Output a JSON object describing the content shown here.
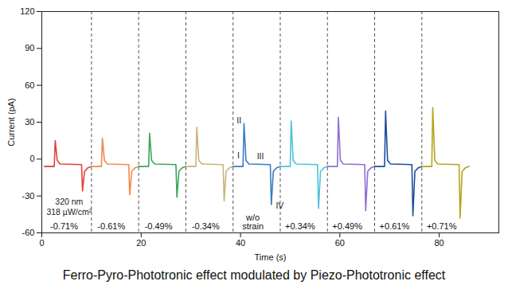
{
  "chart_data": {
    "type": "line",
    "title": "Ferro-Pyro-Phototronic effect modulated by Piezo-Phototronic effect",
    "x_label": "Time (s)",
    "y_label": "Current (pA)",
    "xlim": [
      0,
      92
    ],
    "xticks": [
      0,
      20,
      40,
      60,
      80
    ],
    "ylim": [
      -60,
      120
    ],
    "yticks": [
      -60,
      -30,
      0,
      30,
      60,
      90,
      120
    ],
    "dividers": [
      10,
      19.5,
      29,
      38.5,
      48,
      57.5,
      67,
      76.5
    ],
    "series": [
      {
        "name": "-0.71%",
        "color": "#e0403a",
        "x": [
          0.5,
          2.5,
          2.7,
          3.1,
          3.7,
          8,
          8.2,
          8.6,
          9.3,
          10
        ],
        "values": [
          -6,
          -6,
          15,
          -1,
          -4,
          -4.5,
          -26,
          -10,
          -7,
          -6
        ]
      },
      {
        "name": "-0.61%",
        "color": "#f08a4b",
        "x": [
          10,
          12,
          12.2,
          12.6,
          13.2,
          17.5,
          17.7,
          18.1,
          18.8,
          19.5
        ],
        "values": [
          -6,
          -6,
          17,
          -1,
          -4,
          -4.5,
          -29,
          -10,
          -7,
          -6
        ]
      },
      {
        "name": "-0.49%",
        "color": "#3aa655",
        "x": [
          19.5,
          21.5,
          21.7,
          22.1,
          22.7,
          27,
          27.2,
          27.6,
          28.3,
          29
        ],
        "values": [
          -6,
          -6,
          21,
          -1,
          -4,
          -4.5,
          -31,
          -10,
          -7,
          -6
        ]
      },
      {
        "name": "-0.34%",
        "color": "#c9b37a",
        "x": [
          29,
          31,
          31.2,
          31.6,
          32.2,
          36.5,
          36.7,
          37.1,
          37.8,
          38.5
        ],
        "values": [
          -6,
          -6,
          26,
          -1,
          -4,
          -4.5,
          -34,
          -10,
          -7,
          -6
        ]
      },
      {
        "name": "w/o strain",
        "color": "#3a7cc2",
        "x": [
          38.5,
          40.5,
          40.7,
          41.1,
          41.7,
          46,
          46.2,
          46.6,
          47.3,
          48
        ],
        "values": [
          -6,
          -6,
          29,
          -1,
          -4,
          -4.5,
          -37,
          -10,
          -7,
          -6
        ]
      },
      {
        "name": "+0.34%",
        "color": "#4cc3d9",
        "x": [
          48,
          50,
          50.2,
          50.6,
          51.2,
          55.5,
          55.7,
          56.1,
          56.8,
          57.5
        ],
        "values": [
          -6,
          -6,
          31,
          -1,
          -4,
          -4.5,
          -40,
          -10,
          -7,
          -6
        ]
      },
      {
        "name": "+0.49%",
        "color": "#8f6fd1",
        "x": [
          57.5,
          59.5,
          59.7,
          60.1,
          60.7,
          65,
          65.2,
          65.6,
          66.3,
          67
        ],
        "values": [
          -6,
          -6,
          34,
          -1,
          -4,
          -4.5,
          -42,
          -10,
          -7,
          -6
        ]
      },
      {
        "name": "+0.61%",
        "color": "#1f4e9c",
        "x": [
          67,
          69,
          69.2,
          69.6,
          70.2,
          74.5,
          74.7,
          75.1,
          75.8,
          76.5
        ],
        "values": [
          -6,
          -6,
          39,
          -1,
          -4,
          -4.5,
          -46,
          -10,
          -7,
          -6
        ]
      },
      {
        "name": "+0.71%",
        "color": "#b5a41c",
        "x": [
          76.5,
          78.5,
          78.7,
          79.1,
          79.7,
          84,
          84.2,
          84.6,
          85.3,
          86
        ],
        "values": [
          -6,
          -6,
          42,
          -1,
          -4,
          -4.5,
          -48,
          -10,
          -7,
          -6
        ]
      }
    ],
    "annotations": [
      {
        "text": "320 nm",
        "x": 5.5,
        "y": -35
      },
      {
        "text": "318 µW/cm²",
        "x": 5.5,
        "y": -43
      },
      {
        "text": "I",
        "x": 39.6,
        "y": 3
      },
      {
        "text": "II",
        "x": 39.7,
        "y": 31
      },
      {
        "text": "III",
        "x": 44,
        "y": 2
      },
      {
        "text": "IV",
        "x": 47.9,
        "y": -38
      }
    ]
  }
}
